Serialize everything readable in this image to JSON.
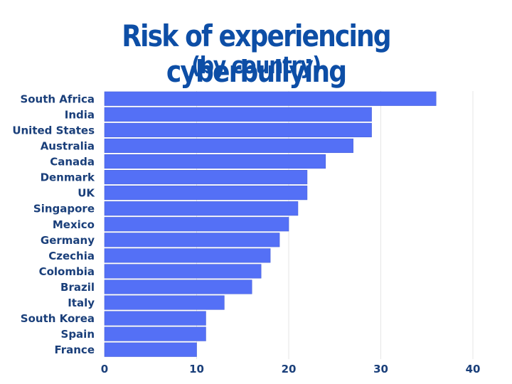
{
  "chart_data": {
    "type": "bar",
    "orientation": "horizontal",
    "title": "Risk of experiencing cyberbullying",
    "subtitle": "(by country)",
    "xlabel": "",
    "ylabel": "",
    "categories": [
      "South Africa",
      "India",
      "United States",
      "Australia",
      "Canada",
      "Denmark",
      "UK",
      "Singapore",
      "Mexico",
      "Germany",
      "Czechia",
      "Colombia",
      "Brazil",
      "Italy",
      "South Korea",
      "Spain",
      "France"
    ],
    "values": [
      36,
      29,
      29,
      27,
      24,
      22,
      22,
      21,
      20,
      19,
      18,
      17,
      16,
      13,
      11,
      11,
      10
    ],
    "xlim": [
      0,
      43
    ],
    "xticks": [
      0,
      10,
      20,
      30,
      40
    ],
    "xtick_labels": [
      "0",
      "10",
      "20",
      "30",
      "40"
    ],
    "grid": "vertical",
    "legend": "none",
    "colors": {
      "bar": "#5470f6",
      "bar_edge": "#4a63d9",
      "title": "#0d4ea6",
      "labels": "#1a3f7a",
      "grid": "#e6e6e6"
    }
  }
}
